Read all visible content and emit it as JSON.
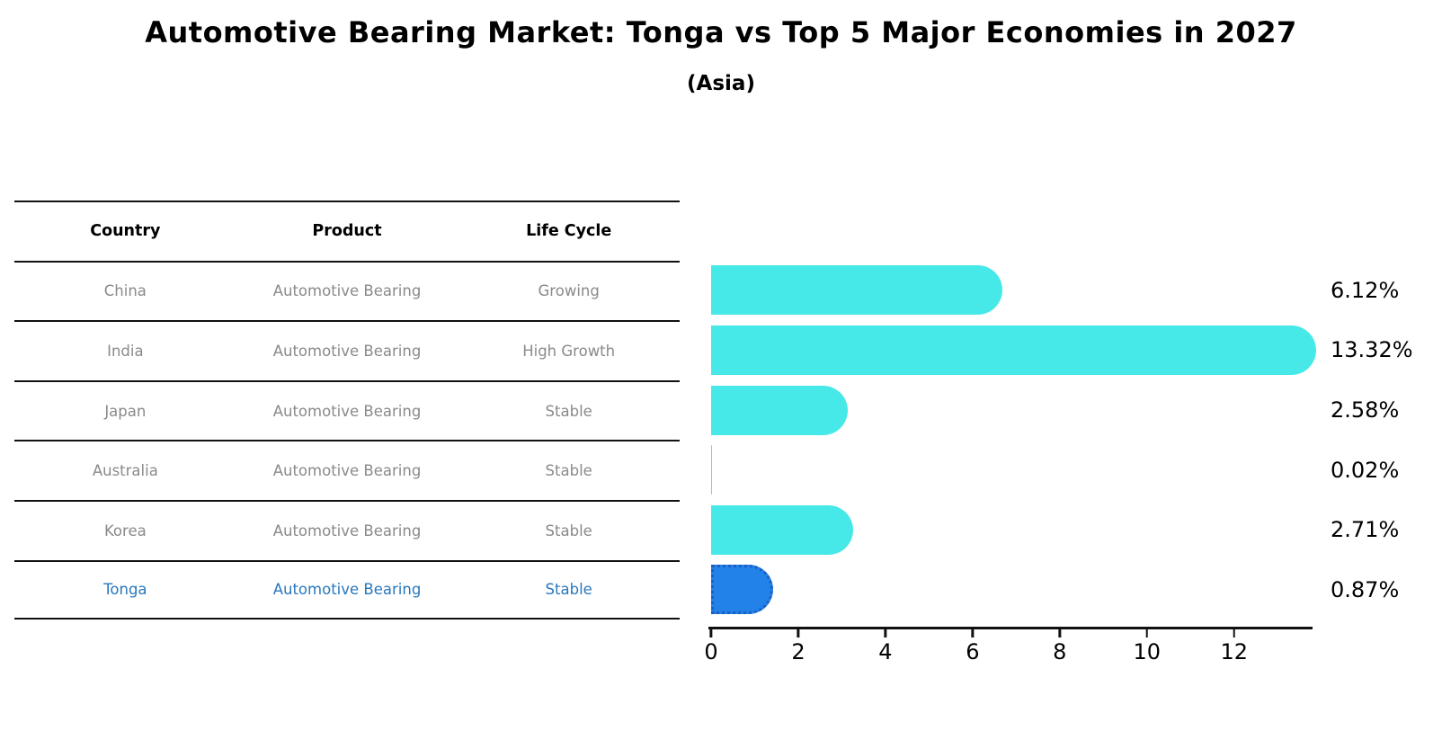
{
  "title": "Automotive Bearing Market: Tonga vs Top 5 Major Economies in 2027",
  "subtitle": "(Asia)",
  "table": {
    "headers": [
      "Country",
      "Product",
      "Life Cycle"
    ],
    "rows": [
      {
        "country": "China",
        "product": "Automotive Bearing",
        "life_cycle": "Growing",
        "highlight": false
      },
      {
        "country": "India",
        "product": "Automotive Bearing",
        "life_cycle": "High Growth",
        "highlight": false
      },
      {
        "country": "Japan",
        "product": "Automotive Bearing",
        "life_cycle": "Stable",
        "highlight": false
      },
      {
        "country": "Australia",
        "product": "Automotive Bearing",
        "life_cycle": "Stable",
        "highlight": false
      },
      {
        "country": "Korea",
        "product": "Automotive Bearing",
        "life_cycle": "Stable",
        "highlight": false
      },
      {
        "country": "Tonga",
        "product": "Automotive Bearing",
        "life_cycle": "Stable",
        "highlight": true
      }
    ]
  },
  "chart_data": {
    "type": "bar",
    "orientation": "horizontal",
    "categories": [
      "China",
      "India",
      "Japan",
      "Australia",
      "Korea",
      "Tonga"
    ],
    "values": [
      6.12,
      13.32,
      2.58,
      0.02,
      2.71,
      0.87
    ],
    "value_labels": [
      "6.12%",
      "13.32%",
      "2.58%",
      "0.02%",
      "2.71%",
      "0.87%"
    ],
    "x_ticks": [
      "0",
      "2",
      "4",
      "6",
      "8",
      "10",
      "12"
    ],
    "xlim": [
      0,
      13.8
    ],
    "grid": false,
    "legend": false,
    "bar_color": "#47e8e8",
    "highlight_index": 5,
    "highlight_color": "#2282e8",
    "highlight_border_color": "#1b5ec4",
    "title": "Automotive Bearing Market: Tonga vs Top 5 Major Economies in 2027",
    "subtitle": "(Asia)"
  }
}
